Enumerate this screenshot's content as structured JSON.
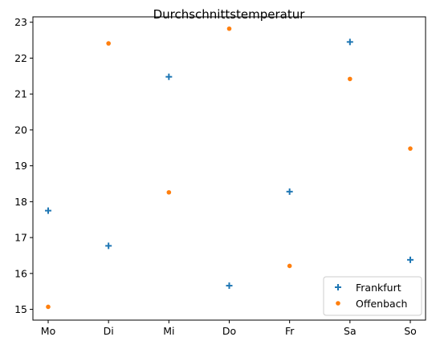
{
  "chart_data": {
    "type": "scatter",
    "title": "Durchschnittstemperatur",
    "xlabel": "",
    "ylabel": "",
    "categories": [
      "Mo",
      "Di",
      "Mi",
      "Do",
      "Fr",
      "Sa",
      "So"
    ],
    "ylim": [
      14.7,
      23.15
    ],
    "yticks": [
      15,
      16,
      17,
      18,
      19,
      20,
      21,
      22,
      23
    ],
    "grid": false,
    "legend_position": "bottom-right",
    "series": [
      {
        "name": "Frankfurt",
        "marker": "plus",
        "color": "#1f77b4",
        "values": [
          17.75,
          16.77,
          21.48,
          15.66,
          18.28,
          22.45,
          16.38
        ]
      },
      {
        "name": "Offenbach",
        "marker": "circle",
        "color": "#ff7f0e",
        "values": [
          15.07,
          22.41,
          18.26,
          22.82,
          16.21,
          21.42,
          19.48
        ]
      }
    ]
  }
}
